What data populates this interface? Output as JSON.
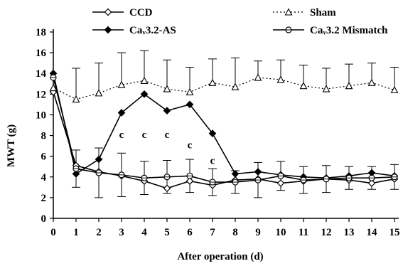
{
  "chart_data": {
    "type": "line",
    "xlabel": "After operation (d)",
    "ylabel": "MWT (g)",
    "xlim": [
      0,
      15
    ],
    "ylim": [
      0,
      18
    ],
    "x": [
      0,
      1,
      2,
      3,
      4,
      5,
      6,
      7,
      8,
      9,
      10,
      11,
      12,
      13,
      14,
      15
    ],
    "xticks": [
      "0",
      "1",
      "2",
      "3",
      "4",
      "5",
      "6",
      "7",
      "8",
      "9",
      "10",
      "11",
      "12",
      "13",
      "14",
      "15"
    ],
    "yticks": [
      "0",
      "2",
      "4",
      "6",
      "8",
      "10",
      "12",
      "14",
      "16",
      "18"
    ],
    "grid": false,
    "legend_position": "top",
    "series": [
      {
        "name": "CCD",
        "style": "solid",
        "marker": "open-diamond",
        "color": "#000000",
        "values": [
          12.2,
          5.1,
          4.5,
          4.1,
          3.6,
          2.9,
          3.6,
          3.2,
          3.7,
          3.8,
          3.4,
          3.6,
          3.8,
          3.7,
          3.4,
          3.8
        ],
        "error": [
          0,
          0,
          0,
          0,
          0,
          0,
          0,
          0,
          0,
          0,
          0,
          0,
          0,
          0,
          0,
          0
        ]
      },
      {
        "name": "Sham",
        "style": "dotted",
        "marker": "open-triangle",
        "color": "#000000",
        "values": [
          12.6,
          11.5,
          12.1,
          12.9,
          13.3,
          12.5,
          12.2,
          13.1,
          12.7,
          13.6,
          13.4,
          12.8,
          12.5,
          12.8,
          13.1,
          12.4
        ],
        "error": [
          0,
          3.0,
          2.9,
          3.1,
          2.9,
          2.8,
          2.4,
          2.3,
          2.8,
          1.6,
          1.9,
          2.0,
          2.0,
          2.1,
          1.9,
          2.2
        ]
      },
      {
        "name": "Caᵥ3.2-AS",
        "style": "solid",
        "marker": "filled-diamond",
        "color": "#000000",
        "values": [
          14.0,
          4.3,
          5.7,
          10.2,
          12.0,
          10.4,
          11.0,
          8.2,
          4.3,
          4.5,
          4.2,
          4.0,
          3.9,
          4.1,
          4.4,
          4.1
        ],
        "error": [
          0,
          0,
          0,
          0,
          0,
          0,
          0,
          0,
          0,
          0,
          0,
          0,
          0,
          0,
          0,
          0
        ]
      },
      {
        "name": "Caᵥ3.2 Mismatch",
        "style": "solid",
        "marker": "open-circle",
        "color": "#000000",
        "values": [
          13.6,
          4.8,
          4.4,
          4.2,
          3.9,
          4.0,
          4.1,
          3.5,
          3.5,
          3.7,
          4.1,
          3.7,
          3.8,
          3.9,
          3.9,
          4.0
        ],
        "error": [
          0,
          1.8,
          2.4,
          2.1,
          1.6,
          1.6,
          1.6,
          1.3,
          1.1,
          1.7,
          1.4,
          1.3,
          1.3,
          1.1,
          1.1,
          1.2
        ]
      }
    ],
    "annotations": [
      {
        "text": "c",
        "x": 3,
        "y": 8.1
      },
      {
        "text": "c",
        "x": 4,
        "y": 8.1
      },
      {
        "text": "c",
        "x": 5,
        "y": 8.1
      },
      {
        "text": "c",
        "x": 6,
        "y": 7.1
      },
      {
        "text": "c",
        "x": 7,
        "y": 5.6
      }
    ]
  }
}
